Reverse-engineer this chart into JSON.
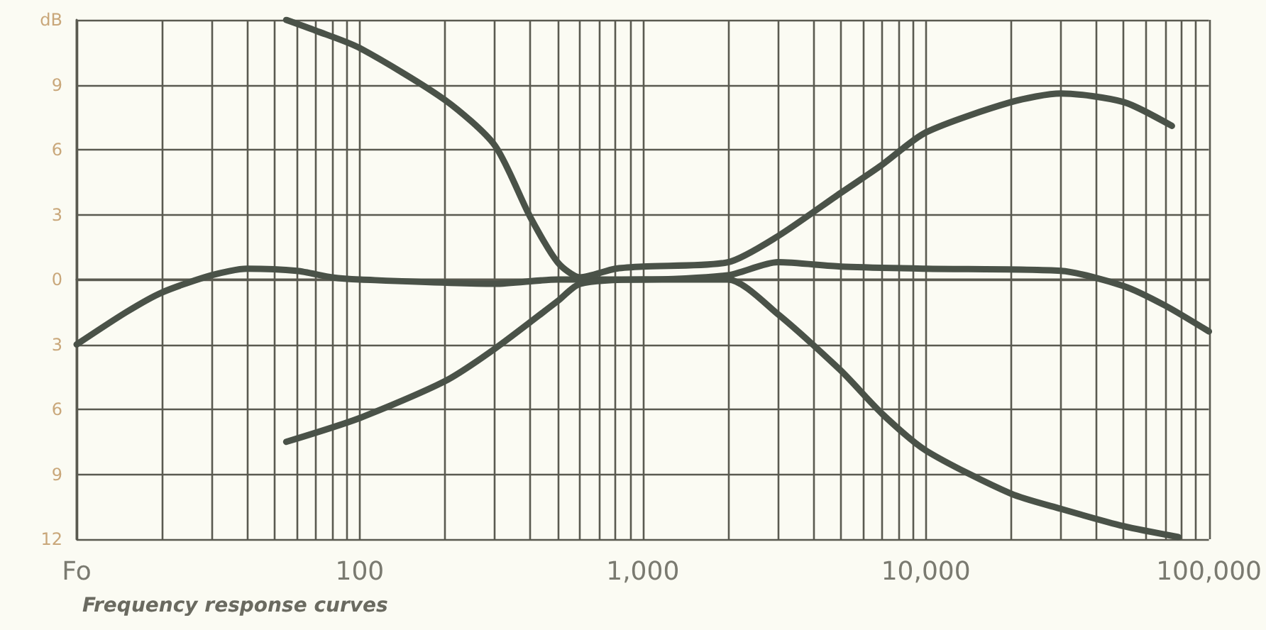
{
  "chart_data": {
    "type": "line",
    "log": "x",
    "grid": true,
    "marker": "none",
    "line_style": "solid",
    "xlim": [
      10,
      100000
    ],
    "xticks": [
      {
        "value": 10,
        "label": "Fo"
      },
      {
        "value": 20,
        "label": null
      },
      {
        "value": 30,
        "label": null
      },
      {
        "value": 40,
        "label": null
      },
      {
        "value": 50,
        "label": null
      },
      {
        "value": 60,
        "label": null
      },
      {
        "value": 70,
        "label": null
      },
      {
        "value": 80,
        "label": null
      },
      {
        "value": 90,
        "label": null
      },
      100,
      {
        "value": 200,
        "label": null
      },
      {
        "value": 300,
        "label": null
      },
      {
        "value": 400,
        "label": null
      },
      {
        "value": 500,
        "label": null
      },
      {
        "value": 600,
        "label": null
      },
      {
        "value": 700,
        "label": null
      },
      {
        "value": 800,
        "label": null
      },
      {
        "value": 900,
        "label": null
      },
      {
        "value": 1000,
        "label": "1,000"
      },
      {
        "value": 2000,
        "label": null
      },
      {
        "value": 3000,
        "label": null
      },
      {
        "value": 4000,
        "label": null
      },
      {
        "value": 5000,
        "label": null
      },
      {
        "value": 6000,
        "label": null
      },
      {
        "value": 7000,
        "label": null
      },
      {
        "value": 8000,
        "label": null
      },
      {
        "value": 9000,
        "label": null
      },
      {
        "value": 10000,
        "label": "10,000"
      },
      {
        "value": 20000,
        "label": null
      },
      {
        "value": 30000,
        "label": null
      },
      {
        "value": 40000,
        "label": null
      },
      {
        "value": 50000,
        "label": null
      },
      {
        "value": 60000,
        "label": null
      },
      {
        "value": 70000,
        "label": null
      },
      {
        "value": 80000,
        "label": null
      },
      {
        "value": 90000,
        "label": null
      },
      {
        "value": 100000,
        "label": "100,000"
      }
    ],
    "ylim": [
      -12,
      12
    ],
    "yticks": [
      {
        "value": -12,
        "label": "12"
      },
      {
        "value": -9,
        "label": "9"
      },
      {
        "value": -6,
        "label": "6"
      },
      {
        "value": -3,
        "label": "3"
      },
      0,
      3,
      6,
      9,
      {
        "value": 12,
        "label": "dB"
      }
    ],
    "series": [
      {
        "color": "#4a5248",
        "x": [
          10,
          15,
          20,
          30,
          40,
          60,
          80,
          100,
          300,
          500,
          1000,
          2000,
          3000,
          5000,
          10000,
          30000,
          50000,
          70000,
          100000
        ],
        "values": [
          -3,
          -1.5,
          -0.6,
          0.2,
          0.5,
          0.4,
          0.1,
          0,
          -0.2,
          0,
          0,
          0.2,
          0.8,
          0.6,
          0.5,
          0.4,
          -0.3,
          -1.2,
          -2.4
        ]
      },
      {
        "color": "#4a5248",
        "x": [
          55,
          70,
          100,
          200,
          300,
          400,
          500,
          600,
          800,
          1000,
          2000,
          3000,
          5000,
          7000,
          10000,
          20000,
          30000,
          50000,
          74000
        ],
        "values": [
          12,
          11.5,
          10.7,
          8.3,
          6.2,
          2.9,
          0.8,
          0.1,
          0.5,
          0.6,
          0.8,
          2,
          4,
          5.3,
          6.8,
          8.2,
          8.6,
          8.2,
          7.1
        ]
      },
      {
        "color": "#4a5248",
        "x": [
          55,
          100,
          200,
          300,
          500,
          600,
          1000,
          2000,
          3000,
          5000,
          7000,
          10000,
          20000,
          30000,
          50000,
          78000
        ],
        "values": [
          -7.5,
          -6.4,
          -4.7,
          -3.2,
          -1,
          -0.2,
          0,
          0,
          -1.6,
          -4.2,
          -6.2,
          -7.9,
          -9.9,
          -10.6,
          -11.4,
          -11.9
        ]
      }
    ],
    "annotations": [
      "Frequency response curves"
    ]
  }
}
